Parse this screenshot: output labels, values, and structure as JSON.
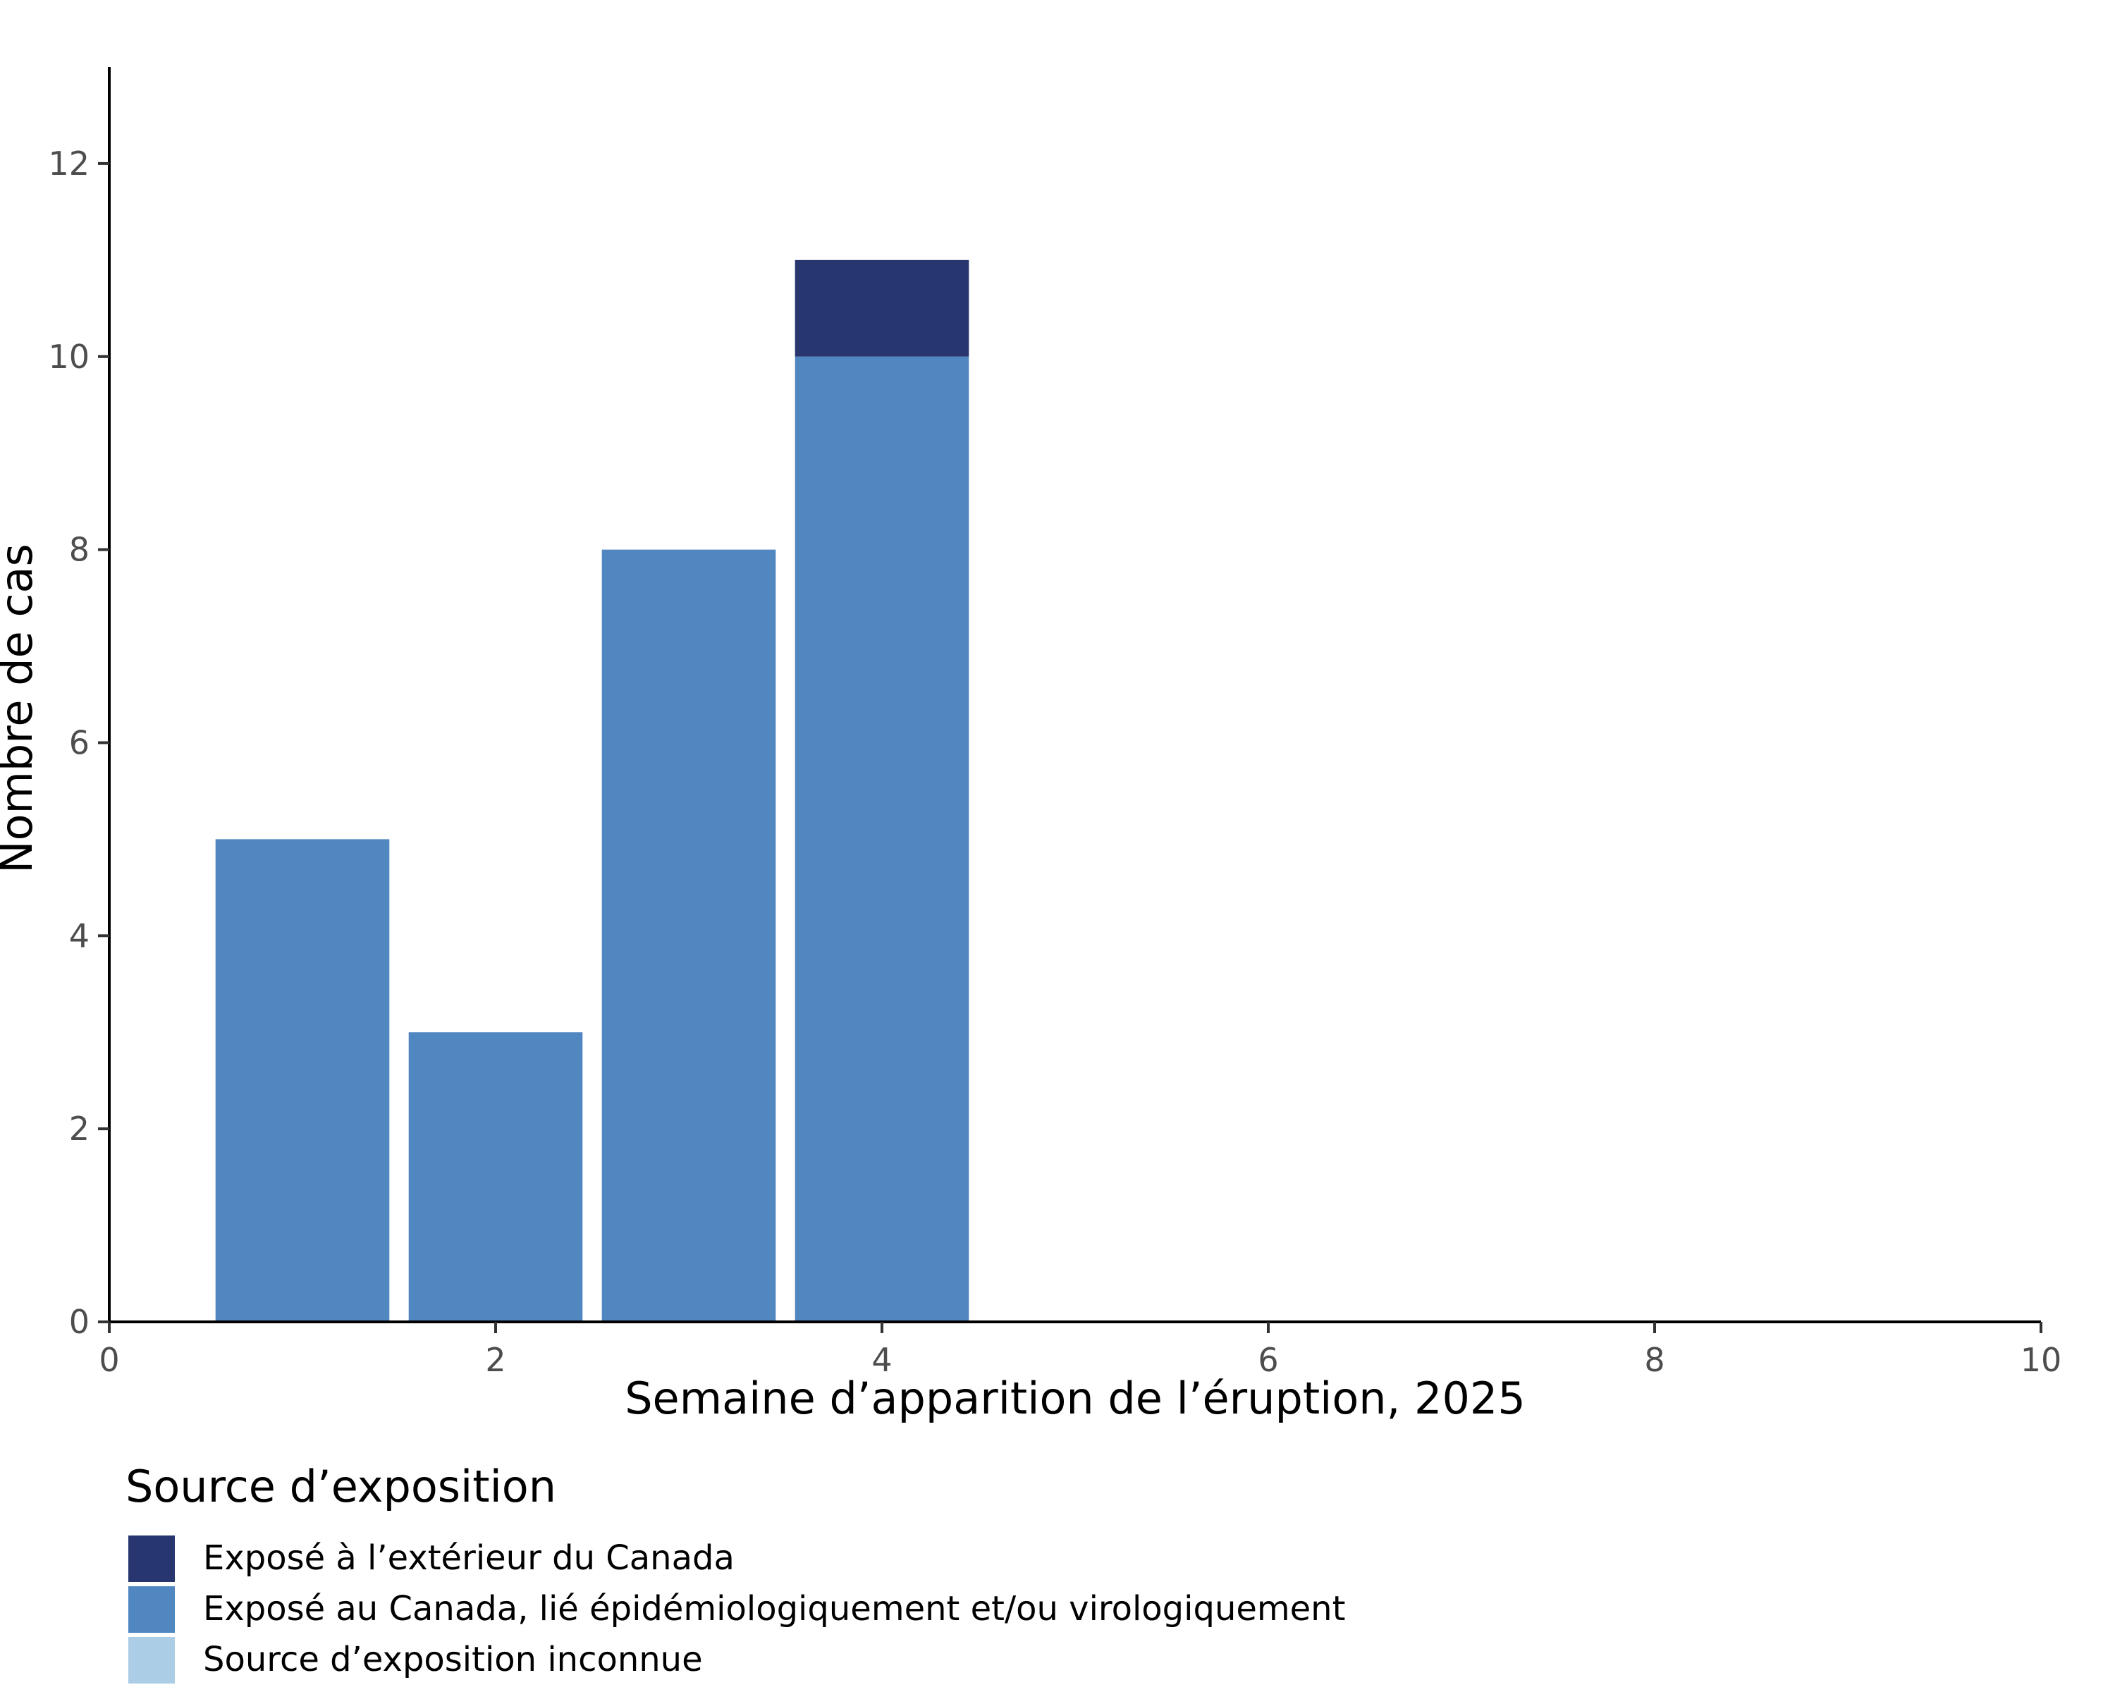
{
  "chart_data": {
    "type": "bar",
    "stacked": true,
    "xlabel": "Semaine d’apparition de l’éruption, 2025",
    "ylabel": "Nombre de cas",
    "xlim": [
      0,
      10
    ],
    "ylim": [
      0,
      13
    ],
    "xticks": [
      0,
      2,
      4,
      6,
      8,
      10
    ],
    "yticks": [
      0,
      2,
      4,
      6,
      8,
      10,
      12
    ],
    "x": [
      1,
      2,
      3,
      4
    ],
    "series": [
      {
        "name": "Exposé au Canada, lié épidémiologiquement et/ou virologiquement",
        "color": "#5087c0",
        "values": [
          5,
          3,
          8,
          10
        ]
      },
      {
        "name": "Exposé à l’extérieur du Canada",
        "color": "#283670",
        "values": [
          0,
          0,
          0,
          1
        ]
      },
      {
        "name": "Source d’exposition inconnue",
        "color": "#abcde5",
        "values": [
          0,
          0,
          0,
          0
        ]
      }
    ],
    "legend": {
      "title": "Source d’exposition",
      "position": "bottom-left",
      "entries": [
        {
          "label": "Exposé à l’extérieur du Canada",
          "color": "#283670"
        },
        {
          "label": "Exposé au Canada, lié épidémiologiquement et/ou virologiquement",
          "color": "#5087c0"
        },
        {
          "label": "Source d’exposition inconnue",
          "color": "#abcde5"
        }
      ]
    },
    "grid": false
  }
}
